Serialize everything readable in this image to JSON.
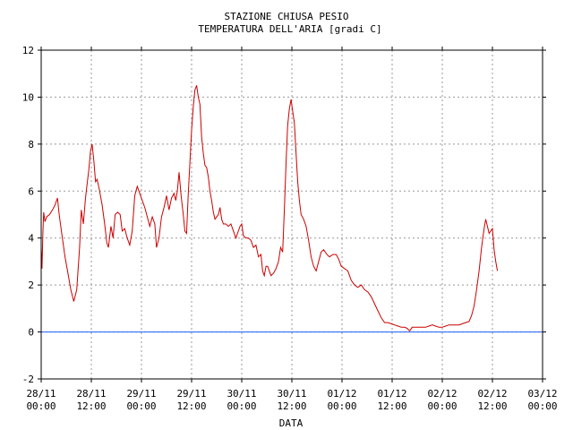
{
  "chart_data": {
    "type": "line",
    "title": "STAZIONE CHIUSA PESIO",
    "subtitle": "TEMPERATURA DELL'ARIA [gradi C]",
    "xlabel": "DATA",
    "ylabel": "",
    "ylim": [
      -2,
      12
    ],
    "yticks": [
      -2,
      0,
      2,
      4,
      6,
      8,
      10,
      12
    ],
    "xlim": [
      0,
      120
    ],
    "x_unit": "hours since 28/11 00:00",
    "xticks": [
      {
        "x": 0,
        "date": "28/11",
        "time": "00:00"
      },
      {
        "x": 12,
        "date": "28/11",
        "time": "12:00"
      },
      {
        "x": 24,
        "date": "29/11",
        "time": "00:00"
      },
      {
        "x": 36,
        "date": "29/11",
        "time": "12:00"
      },
      {
        "x": 48,
        "date": "30/11",
        "time": "00:00"
      },
      {
        "x": 60,
        "date": "30/11",
        "time": "12:00"
      },
      {
        "x": 72,
        "date": "01/12",
        "time": "00:00"
      },
      {
        "x": 84,
        "date": "01/12",
        "time": "12:00"
      },
      {
        "x": 96,
        "date": "02/12",
        "time": "00:00"
      },
      {
        "x": 108,
        "date": "02/12",
        "time": "12:00"
      },
      {
        "x": 120,
        "date": "03/12",
        "time": "00:00"
      }
    ],
    "grid": true,
    "reference_line": {
      "y": 0,
      "color": "#1f5fff"
    },
    "series": [
      {
        "name": "",
        "color": "#cc0000",
        "points": [
          [
            0,
            3.6
          ],
          [
            0.2,
            2.7
          ],
          [
            0.4,
            4.2
          ],
          [
            0.6,
            5.1
          ],
          [
            0.9,
            4.7
          ],
          [
            1.3,
            4.9
          ],
          [
            2,
            5.0
          ],
          [
            2.7,
            5.2
          ],
          [
            3.3,
            5.4
          ],
          [
            3.9,
            5.7
          ],
          [
            4.3,
            5.0
          ],
          [
            5.0,
            4.1
          ],
          [
            5.7,
            3.2
          ],
          [
            6.4,
            2.5
          ],
          [
            7.1,
            1.8
          ],
          [
            7.8,
            1.3
          ],
          [
            8.5,
            1.8
          ],
          [
            9.2,
            3.6
          ],
          [
            9.6,
            5.2
          ],
          [
            10.1,
            4.6
          ],
          [
            10.6,
            5.7
          ],
          [
            11.0,
            6.3
          ],
          [
            11.4,
            6.9
          ],
          [
            11.8,
            7.7
          ],
          [
            12.2,
            8.0
          ],
          [
            12.6,
            7.3
          ],
          [
            13.0,
            6.4
          ],
          [
            13.4,
            6.5
          ],
          [
            14.0,
            6.0
          ],
          [
            14.6,
            5.4
          ],
          [
            15.2,
            4.6
          ],
          [
            15.7,
            3.8
          ],
          [
            16.1,
            3.6
          ],
          [
            16.7,
            4.5
          ],
          [
            17.2,
            4.0
          ],
          [
            17.7,
            5.0
          ],
          [
            18.3,
            5.1
          ],
          [
            18.9,
            5.0
          ],
          [
            19.4,
            4.3
          ],
          [
            20.0,
            4.4
          ],
          [
            20.6,
            4.0
          ],
          [
            21.2,
            3.7
          ],
          [
            21.8,
            4.3
          ],
          [
            22.4,
            5.8
          ],
          [
            23.0,
            6.2
          ],
          [
            23.6,
            5.9
          ],
          [
            24.2,
            5.6
          ],
          [
            24.8,
            5.3
          ],
          [
            25.4,
            4.9
          ],
          [
            26.0,
            4.5
          ],
          [
            26.6,
            4.9
          ],
          [
            27.2,
            4.6
          ],
          [
            27.6,
            3.6
          ],
          [
            28.2,
            4.0
          ],
          [
            28.8,
            4.9
          ],
          [
            29.4,
            5.3
          ],
          [
            30.0,
            5.8
          ],
          [
            30.6,
            5.2
          ],
          [
            31.2,
            5.7
          ],
          [
            31.8,
            5.9
          ],
          [
            32.2,
            5.6
          ],
          [
            32.6,
            6.0
          ],
          [
            33.0,
            6.8
          ],
          [
            33.5,
            5.8
          ],
          [
            34.0,
            5.0
          ],
          [
            34.4,
            4.3
          ],
          [
            34.8,
            4.2
          ],
          [
            35.2,
            5.9
          ],
          [
            35.6,
            7.2
          ],
          [
            36.0,
            8.6
          ],
          [
            36.4,
            9.6
          ],
          [
            36.8,
            10.3
          ],
          [
            37.2,
            10.5
          ],
          [
            37.6,
            10.0
          ],
          [
            38.0,
            9.7
          ],
          [
            38.4,
            8.3
          ],
          [
            38.8,
            7.6
          ],
          [
            39.2,
            7.1
          ],
          [
            39.6,
            7.0
          ],
          [
            40.0,
            6.6
          ],
          [
            40.4,
            6.0
          ],
          [
            40.8,
            5.6
          ],
          [
            41.2,
            5.1
          ],
          [
            41.6,
            4.8
          ],
          [
            42.0,
            4.9
          ],
          [
            42.4,
            5.0
          ],
          [
            42.8,
            5.3
          ],
          [
            43.2,
            4.8
          ],
          [
            43.6,
            4.6
          ],
          [
            44.2,
            4.6
          ],
          [
            44.8,
            4.5
          ],
          [
            45.4,
            4.6
          ],
          [
            46.0,
            4.3
          ],
          [
            46.6,
            4.0
          ],
          [
            47.0,
            4.2
          ],
          [
            47.6,
            4.5
          ],
          [
            48.0,
            4.6
          ],
          [
            48.4,
            4.1
          ],
          [
            49.0,
            4.0
          ],
          [
            49.6,
            4.0
          ],
          [
            50.2,
            3.9
          ],
          [
            50.8,
            3.6
          ],
          [
            51.4,
            3.7
          ],
          [
            52.0,
            3.2
          ],
          [
            52.6,
            3.3
          ],
          [
            53.0,
            2.6
          ],
          [
            53.4,
            2.4
          ],
          [
            53.8,
            2.8
          ],
          [
            54.2,
            2.8
          ],
          [
            54.6,
            2.6
          ],
          [
            55.0,
            2.4
          ],
          [
            55.6,
            2.5
          ],
          [
            56.2,
            2.7
          ],
          [
            56.8,
            3.0
          ],
          [
            57.3,
            3.6
          ],
          [
            57.8,
            3.4
          ],
          [
            58.2,
            5.2
          ],
          [
            58.6,
            7.2
          ],
          [
            59.0,
            8.8
          ],
          [
            59.4,
            9.5
          ],
          [
            59.8,
            9.9
          ],
          [
            60.2,
            9.4
          ],
          [
            60.6,
            8.9
          ],
          [
            61.0,
            7.6
          ],
          [
            61.4,
            6.4
          ],
          [
            61.8,
            5.6
          ],
          [
            62.2,
            5.0
          ],
          [
            62.8,
            4.8
          ],
          [
            63.4,
            4.5
          ],
          [
            64.0,
            3.9
          ],
          [
            64.6,
            3.2
          ],
          [
            65.2,
            2.8
          ],
          [
            65.8,
            2.6
          ],
          [
            66.4,
            3.0
          ],
          [
            67.0,
            3.4
          ],
          [
            67.6,
            3.5
          ],
          [
            68.4,
            3.3
          ],
          [
            69.0,
            3.2
          ],
          [
            69.8,
            3.3
          ],
          [
            70.6,
            3.3
          ],
          [
            71.2,
            3.1
          ],
          [
            71.8,
            2.8
          ],
          [
            72.6,
            2.7
          ],
          [
            73.4,
            2.6
          ],
          [
            74.2,
            2.2
          ],
          [
            75.0,
            2.0
          ],
          [
            75.8,
            1.9
          ],
          [
            76.6,
            2.0
          ],
          [
            77.4,
            1.8
          ],
          [
            78.2,
            1.7
          ],
          [
            79.0,
            1.5
          ],
          [
            79.8,
            1.2
          ],
          [
            80.6,
            0.9
          ],
          [
            81.4,
            0.6
          ],
          [
            82.2,
            0.4
          ],
          [
            83.0,
            0.4
          ],
          [
            83.8,
            0.35
          ],
          [
            84.6,
            0.3
          ],
          [
            85.4,
            0.25
          ],
          [
            86.2,
            0.2
          ],
          [
            87.0,
            0.2
          ],
          [
            87.6,
            0.15
          ],
          [
            88.2,
            0.05
          ],
          [
            88.8,
            0.2
          ],
          [
            89.6,
            0.2
          ],
          [
            90.4,
            0.2
          ],
          [
            91.2,
            0.2
          ],
          [
            92.0,
            0.2
          ],
          [
            92.8,
            0.25
          ],
          [
            93.6,
            0.3
          ],
          [
            94.4,
            0.25
          ],
          [
            95.2,
            0.2
          ],
          [
            96.0,
            0.2
          ],
          [
            96.8,
            0.25
          ],
          [
            97.6,
            0.3
          ],
          [
            98.4,
            0.3
          ],
          [
            99.2,
            0.3
          ],
          [
            100.0,
            0.3
          ],
          [
            100.8,
            0.35
          ],
          [
            101.6,
            0.4
          ],
          [
            102.4,
            0.45
          ],
          [
            103.0,
            0.7
          ],
          [
            103.6,
            1.1
          ],
          [
            104.2,
            1.8
          ],
          [
            104.8,
            2.6
          ],
          [
            105.4,
            3.6
          ],
          [
            106.0,
            4.4
          ],
          [
            106.4,
            4.8
          ],
          [
            106.8,
            4.5
          ],
          [
            107.2,
            4.2
          ],
          [
            107.6,
            4.3
          ],
          [
            108.0,
            4.4
          ],
          [
            108.4,
            3.5
          ],
          [
            108.8,
            3.0
          ],
          [
            109.2,
            2.6
          ]
        ]
      }
    ]
  }
}
